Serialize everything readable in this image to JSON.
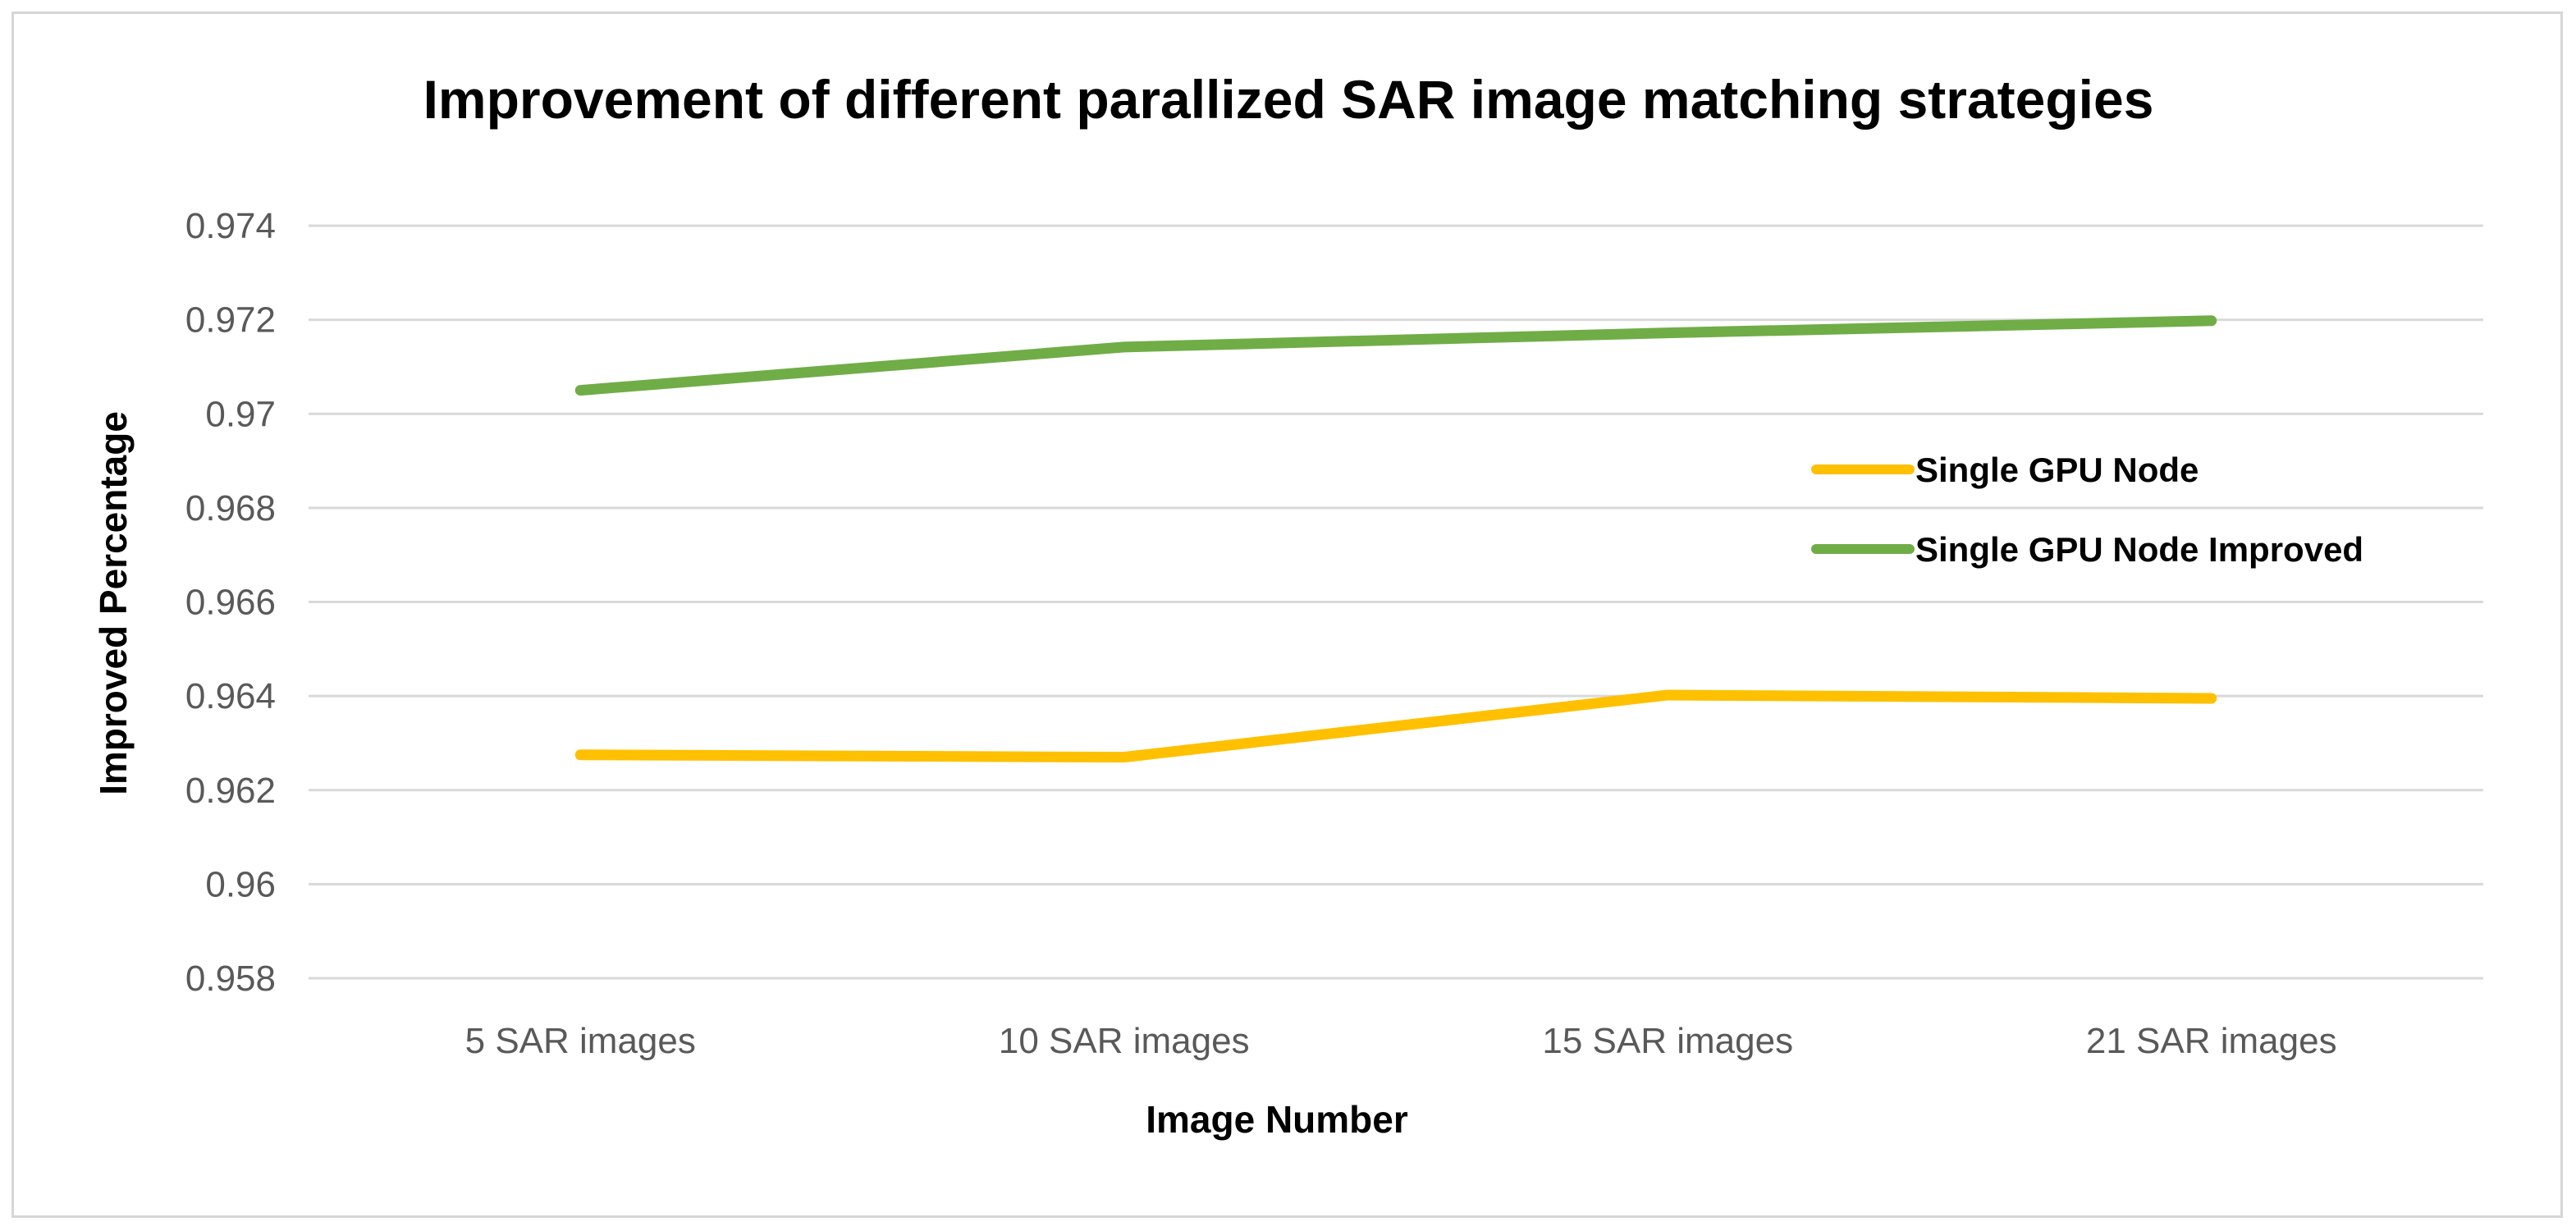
{
  "chart_data": {
    "type": "line",
    "title": "Improvement of different parallized SAR image matching strategies",
    "xlabel": "Image Number",
    "ylabel": "Improved Percentage",
    "categories": [
      "5 SAR images",
      "10 SAR images",
      "15 SAR images",
      "21 SAR images"
    ],
    "ylim": [
      0.958,
      0.974
    ],
    "yticks": [
      "0.958",
      "0.96",
      "0.962",
      "0.964",
      "0.966",
      "0.968",
      "0.97",
      "0.972",
      "0.974"
    ],
    "grid": true,
    "legend_position": "right",
    "series": [
      {
        "name": "Single GPU Node",
        "color": "#FFC000",
        "values": [
          0.96275,
          0.9627,
          0.96402,
          0.96395
        ]
      },
      {
        "name": "Single GPU Node Improved",
        "color": "#70AD47",
        "values": [
          0.9705,
          0.97142,
          0.97172,
          0.97198
        ]
      }
    ]
  }
}
